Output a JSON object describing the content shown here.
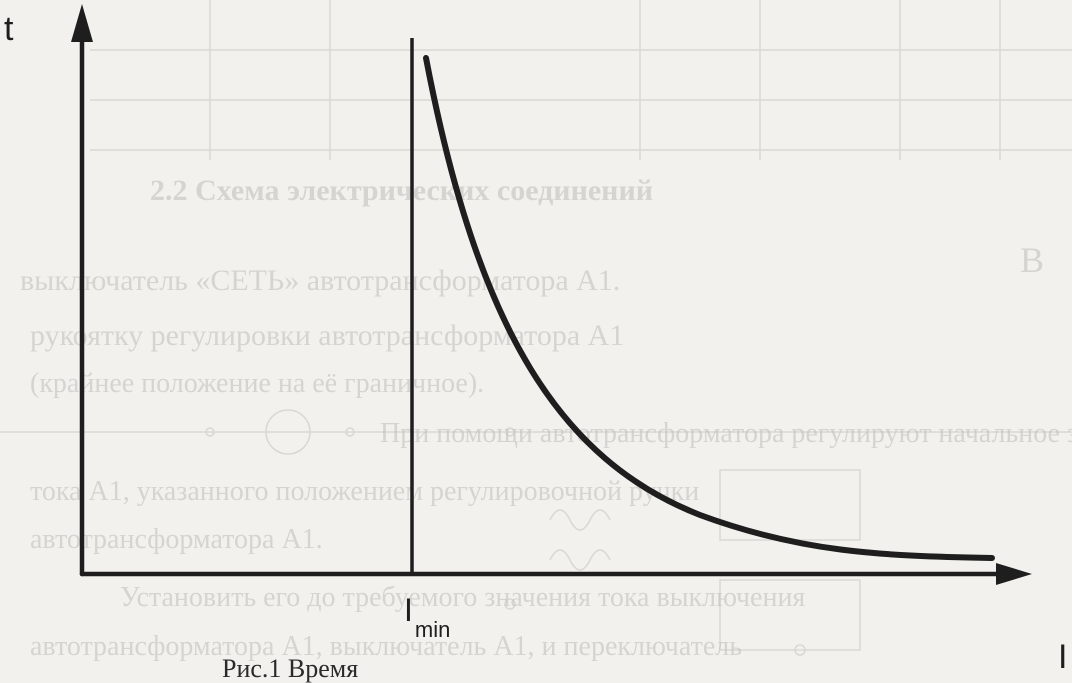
{
  "diagram": {
    "y_axis_label": "t",
    "x_axis_label": "I",
    "threshold": {
      "label": "I",
      "subscript": "min"
    },
    "curve": "hyperbolic-decay",
    "caption": "Рис.1 Время"
  },
  "background_text": {
    "heading": "2.2 Схема электрических соединений",
    "side_letter": "B",
    "lines": [
      "выключатель «СЕТЬ» автотрансформатора А1.",
      "рукоятку регулировки автотрансформатора А1",
      "(крайнее положение на её граничное).",
      "При помощи автотрансформатора регулируют начальное значение",
      "тока А1, указанного положением регулировочной ручки",
      "автотрансформатора А1.",
      "Установить его до требуемого значения тока выключения",
      "автотрансформатора А1, выключатель А1, и переключатель"
    ]
  },
  "colors": {
    "ink": "#1e1e1e",
    "paper": "#f2f1ee",
    "ghost": "#b9b8b4"
  }
}
